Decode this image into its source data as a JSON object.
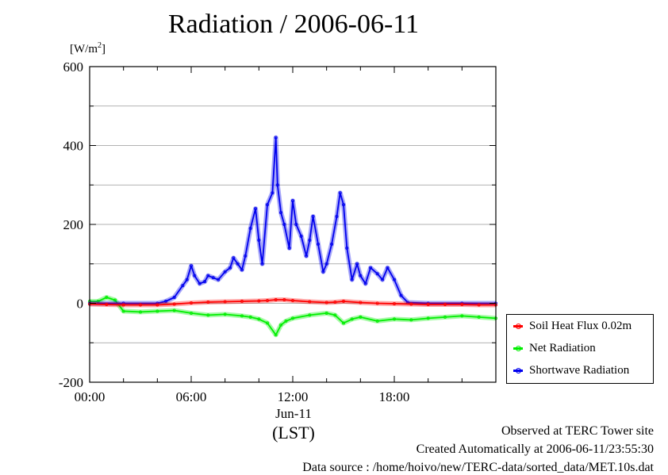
{
  "chart_data": {
    "type": "line",
    "title": "Radiation / 2006-06-11",
    "ylabel": "[W/m2]",
    "ylim": [
      -200,
      600
    ],
    "yticks": [
      "600",
      "400",
      "200",
      "0",
      "-200"
    ],
    "xticks": [
      "00:00",
      "06:00",
      "12:00",
      "18:00"
    ],
    "x_sublabel": "Jun-11",
    "x_unit": "(LST)",
    "x_unit_hours": "hours",
    "xlim": [
      0,
      24
    ],
    "grid": true,
    "legend_position": "bottom-right",
    "series": [
      {
        "name": "Soil Heat Flux 0.02m",
        "color": "#ff0000",
        "x": [
          0,
          1,
          2,
          3,
          4,
          5,
          6,
          7,
          8,
          9,
          10,
          10.5,
          11,
          11.5,
          12,
          13,
          14,
          14.5,
          15,
          16,
          17,
          18,
          19,
          20,
          21,
          22,
          23,
          24
        ],
        "y": [
          -2,
          -3,
          -4,
          -4,
          -4,
          -2,
          1,
          3,
          4,
          5,
          6,
          7,
          9,
          9,
          7,
          4,
          2,
          3,
          5,
          2,
          0,
          -1,
          -2,
          -3,
          -3,
          -3,
          -4,
          -4
        ]
      },
      {
        "name": "Net Radiation",
        "color": "#00ee00",
        "x": [
          0,
          0.5,
          1,
          1.5,
          2,
          3,
          4,
          5,
          6,
          7,
          8,
          9,
          9.5,
          10,
          10.5,
          11,
          11.3,
          11.6,
          12,
          13,
          14,
          14.5,
          15,
          15.5,
          16,
          17,
          18,
          19,
          20,
          21,
          22,
          23,
          24
        ],
        "y": [
          5,
          5,
          15,
          8,
          -20,
          -22,
          -20,
          -18,
          -25,
          -30,
          -28,
          -32,
          -35,
          -40,
          -50,
          -80,
          -55,
          -45,
          -38,
          -30,
          -25,
          -30,
          -50,
          -40,
          -35,
          -45,
          -40,
          -42,
          -38,
          -35,
          -32,
          -35,
          -38
        ]
      },
      {
        "name": "Shortwave Radiation",
        "color": "#0000ee",
        "x": [
          0,
          2,
          4,
          4.5,
          5,
          5.5,
          5.75,
          6,
          6.2,
          6.5,
          6.8,
          7,
          7.3,
          7.6,
          8,
          8.3,
          8.5,
          8.75,
          9,
          9.2,
          9.5,
          9.8,
          10,
          10.2,
          10.5,
          10.8,
          11,
          11.1,
          11.3,
          11.5,
          11.8,
          12,
          12.2,
          12.5,
          12.8,
          13,
          13.2,
          13.5,
          13.8,
          14,
          14.3,
          14.6,
          14.8,
          15,
          15.2,
          15.5,
          15.8,
          16,
          16.3,
          16.6,
          17,
          17.3,
          17.6,
          18,
          18.4,
          18.8,
          20,
          22,
          24
        ],
        "y": [
          0,
          0,
          0,
          5,
          15,
          45,
          60,
          95,
          70,
          50,
          55,
          70,
          65,
          60,
          80,
          90,
          115,
          100,
          85,
          120,
          190,
          240,
          160,
          100,
          250,
          280,
          420,
          300,
          230,
          200,
          140,
          260,
          200,
          170,
          120,
          160,
          220,
          150,
          80,
          100,
          150,
          220,
          280,
          250,
          140,
          60,
          100,
          70,
          50,
          90,
          75,
          60,
          90,
          60,
          20,
          2,
          0,
          0,
          0
        ]
      }
    ]
  },
  "footer": {
    "observed": "Observed at TERC Tower site",
    "created": "Created Automatically at 2006-06-11/23:55:30",
    "source": "Data source : /home/hoivo/new/TERC-data/sorted_data/MET.10s.dat"
  }
}
